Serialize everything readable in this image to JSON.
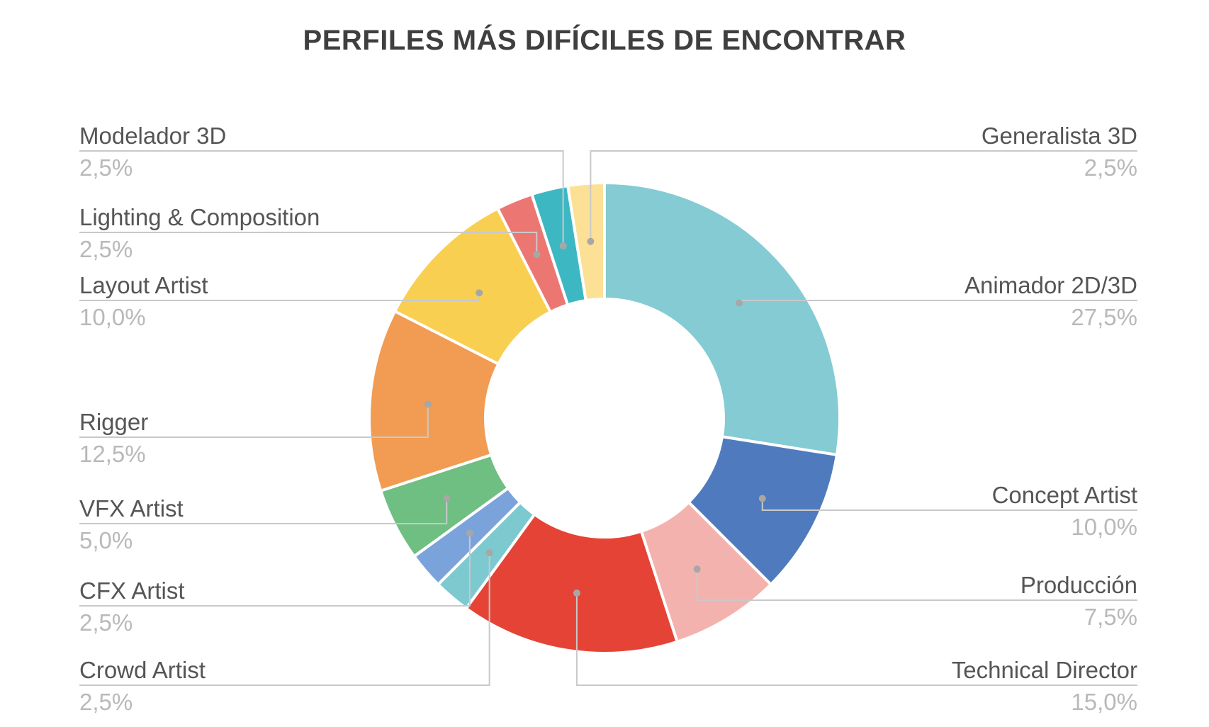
{
  "chart_data": {
    "type": "pie",
    "title": "PERFILES MÁS DIFÍCILES DE ENCONTRAR",
    "slices": [
      {
        "label": "Animador 2D/3D",
        "value": 27.5,
        "display": "27,5%",
        "color": "#84CBD3"
      },
      {
        "label": "Concept Artist",
        "value": 10.0,
        "display": "10,0%",
        "color": "#4F7BBE"
      },
      {
        "label": "Producción",
        "value": 7.5,
        "display": "7,5%",
        "color": "#F4B2AE"
      },
      {
        "label": "Technical Director",
        "value": 15.0,
        "display": "15,0%",
        "color": "#E54335"
      },
      {
        "label": "Crowd Artist",
        "value": 2.5,
        "display": "2,5%",
        "color": "#7CC9D0"
      },
      {
        "label": "CFX Artist",
        "value": 2.5,
        "display": "2,5%",
        "color": "#7BA3DB"
      },
      {
        "label": "VFX Artist",
        "value": 5.0,
        "display": "5,0%",
        "color": "#6FBE82"
      },
      {
        "label": "Rigger",
        "value": 12.5,
        "display": "12,5%",
        "color": "#F29B52"
      },
      {
        "label": "Layout Artist",
        "value": 10.0,
        "display": "10,0%",
        "color": "#F9CF51"
      },
      {
        "label": "Lighting & Composition",
        "value": 2.5,
        "display": "2,5%",
        "color": "#EC7772"
      },
      {
        "label": "Modelador 3D",
        "value": 2.5,
        "display": "2,5%",
        "color": "#3DB8C3"
      },
      {
        "label": "Generalista 3D",
        "value": 2.5,
        "display": "2,5%",
        "color": "#FBE096"
      }
    ]
  }
}
